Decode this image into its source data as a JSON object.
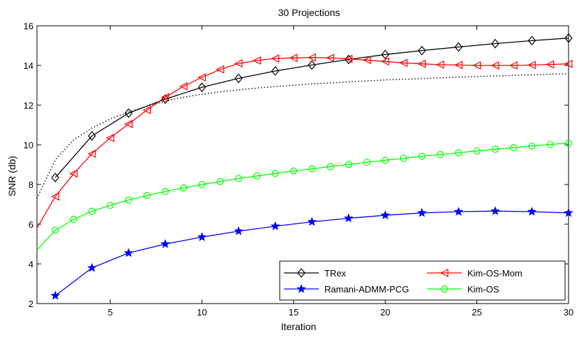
{
  "chart_data": {
    "type": "line",
    "title": "30 Projections",
    "xlabel": "Iteration",
    "ylabel": "SNR (db)",
    "xlim": [
      1,
      30
    ],
    "ylim": [
      2,
      16
    ],
    "xticks": [
      5,
      10,
      15,
      20,
      25,
      30
    ],
    "yticks": [
      2,
      4,
      6,
      8,
      10,
      12,
      14,
      16
    ],
    "legend_position": "bottom-right",
    "series": [
      {
        "name": "TRex",
        "color": "#000000",
        "marker": "diamond",
        "x": [
          2,
          4,
          6,
          8,
          10,
          12,
          14,
          16,
          18,
          20,
          22,
          24,
          26,
          28,
          30
        ],
        "values": [
          8.35,
          10.45,
          11.6,
          12.3,
          12.9,
          13.35,
          13.72,
          14.02,
          14.3,
          14.55,
          14.75,
          14.93,
          15.1,
          15.25,
          15.38
        ]
      },
      {
        "name": "Kim-OS-Mom",
        "color": "#ff0000",
        "marker": "triangle-left",
        "x": [
          1,
          2,
          3,
          4,
          5,
          6,
          7,
          8,
          9,
          10,
          11,
          12,
          13,
          14,
          15,
          16,
          17,
          18,
          19,
          20,
          21,
          22,
          23,
          24,
          25,
          26,
          27,
          28,
          29,
          30
        ],
        "values": [
          5.8,
          7.4,
          8.55,
          9.55,
          10.35,
          11.05,
          11.75,
          12.4,
          12.95,
          13.4,
          13.8,
          14.1,
          14.25,
          14.35,
          14.38,
          14.4,
          14.38,
          14.33,
          14.27,
          14.2,
          14.13,
          14.08,
          14.04,
          14.02,
          14.0,
          14.0,
          14.0,
          14.02,
          14.05,
          14.08
        ],
        "marker_from_index": 1
      },
      {
        "name": "Ramani-ADMM-PCG",
        "color": "#0000ff",
        "marker": "star",
        "x": [
          2,
          4,
          6,
          8,
          10,
          12,
          14,
          16,
          18,
          20,
          22,
          24,
          26,
          28,
          30
        ],
        "values": [
          2.4,
          3.8,
          4.55,
          5.0,
          5.35,
          5.65,
          5.9,
          6.12,
          6.3,
          6.45,
          6.57,
          6.63,
          6.66,
          6.63,
          6.57
        ]
      },
      {
        "name": "Kim-OS",
        "color": "#00ff00",
        "marker": "circle",
        "x": [
          1,
          2,
          3,
          4,
          5,
          6,
          7,
          8,
          9,
          10,
          11,
          12,
          13,
          14,
          15,
          16,
          17,
          18,
          19,
          20,
          21,
          22,
          23,
          24,
          25,
          26,
          27,
          28,
          29,
          30
        ],
        "values": [
          4.7,
          5.7,
          6.25,
          6.65,
          6.95,
          7.22,
          7.45,
          7.65,
          7.83,
          8.0,
          8.15,
          8.3,
          8.43,
          8.56,
          8.68,
          8.79,
          8.9,
          9.01,
          9.12,
          9.22,
          9.32,
          9.42,
          9.51,
          9.6,
          9.69,
          9.78,
          9.86,
          9.94,
          10.02,
          10.08
        ],
        "marker_from_index": 1
      },
      {
        "name": "",
        "color": "#000000",
        "style": "dotted",
        "x": [
          1,
          2,
          3,
          4,
          5,
          6,
          7,
          8,
          9,
          10,
          11,
          12,
          13,
          14,
          15,
          16,
          17,
          18,
          19,
          20,
          21,
          22,
          23,
          24,
          25,
          26,
          27,
          28,
          29,
          30
        ],
        "values": [
          7.3,
          9.25,
          10.25,
          10.85,
          11.3,
          11.65,
          11.95,
          12.2,
          12.4,
          12.55,
          12.67,
          12.77,
          12.86,
          12.94,
          13.0,
          13.07,
          13.12,
          13.17,
          13.22,
          13.27,
          13.3,
          13.34,
          13.38,
          13.41,
          13.44,
          13.47,
          13.5,
          13.53,
          13.56,
          13.58
        ]
      }
    ]
  }
}
